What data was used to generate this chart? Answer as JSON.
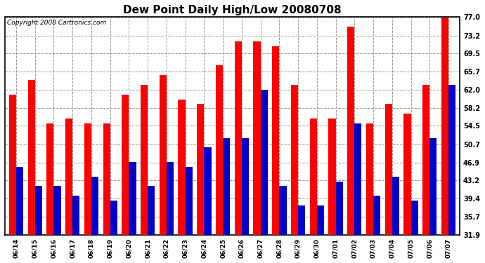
{
  "title": "Dew Point Daily High/Low 20080708",
  "copyright": "Copyright 2008 Cartronics.com",
  "dates": [
    "06/14",
    "06/15",
    "06/16",
    "06/17",
    "06/18",
    "06/19",
    "06/20",
    "06/21",
    "06/22",
    "06/23",
    "06/24",
    "06/25",
    "06/26",
    "06/27",
    "06/28",
    "06/29",
    "06/30",
    "07/01",
    "07/02",
    "07/03",
    "07/04",
    "07/05",
    "07/06",
    "07/07"
  ],
  "highs": [
    61,
    64,
    55,
    56,
    55,
    55,
    61,
    63,
    65,
    60,
    59,
    67,
    72,
    72,
    71,
    63,
    56,
    56,
    75,
    55,
    59,
    57,
    63,
    77
  ],
  "lows": [
    46,
    42,
    42,
    40,
    44,
    39,
    47,
    42,
    47,
    46,
    50,
    52,
    52,
    62,
    42,
    38,
    38,
    43,
    55,
    40,
    44,
    39,
    52,
    63
  ],
  "high_color": "#ff0000",
  "low_color": "#0000cc",
  "background_color": "#ffffff",
  "plot_bg_color": "#ffffff",
  "grid_color": "#999999",
  "bar_width": 0.38,
  "ylim_min": 31.9,
  "ylim_max": 77.0,
  "yticks": [
    31.9,
    35.7,
    39.4,
    43.2,
    46.9,
    50.7,
    54.5,
    58.2,
    62.0,
    65.7,
    69.5,
    73.2,
    77.0
  ],
  "title_fontsize": 11,
  "copyright_fontsize": 6.5,
  "tick_fontsize": 6.5,
  "ytick_fontsize": 7
}
